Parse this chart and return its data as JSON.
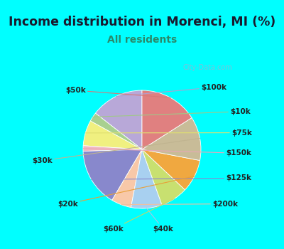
{
  "title": "Income distribution in Morenci, MI (%)",
  "subtitle": "All residents",
  "title_color": "#1a1a2e",
  "subtitle_color": "#2a8a6a",
  "bg_cyan": "#00ffff",
  "bg_chart": "#e8f5ee",
  "watermark": "City-Data.com",
  "labels": [
    "$100k",
    "$10k",
    "$75k",
    "$150k",
    "$125k",
    "$200k",
    "$40k",
    "$60k",
    "$20k",
    "$30k",
    "$50k"
  ],
  "values": [
    14.5,
    2.5,
    7.0,
    1.5,
    16.0,
    5.5,
    8.5,
    7.5,
    9.0,
    12.0,
    16.0
  ],
  "colors": [
    "#b8a8d8",
    "#a8d090",
    "#f0f080",
    "#f0b8c0",
    "#8888cc",
    "#f8c8a8",
    "#a8d0f0",
    "#c8e070",
    "#f0a840",
    "#c8bc98",
    "#e08080"
  ],
  "line_colors": [
    "#b0a0d0",
    "#a0c888",
    "#e0e070",
    "#e8a8b8",
    "#8888cc",
    "#f0c0a0",
    "#a0c8e8",
    "#c0d868",
    "#e8a038",
    "#c0b490",
    "#d87878"
  ],
  "startangle": 90,
  "figsize": [
    4.0,
    3.5
  ],
  "dpi": 100,
  "title_fontsize": 12.5,
  "subtitle_fontsize": 10,
  "label_fontsize": 7.5
}
